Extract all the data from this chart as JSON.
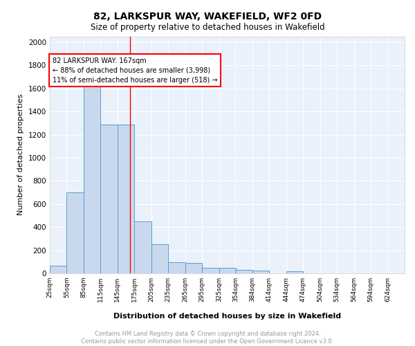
{
  "title": "82, LARKSPUR WAY, WAKEFIELD, WF2 0FD",
  "subtitle": "Size of property relative to detached houses in Wakefield",
  "xlabel": "Distribution of detached houses by size in Wakefield",
  "ylabel": "Number of detached properties",
  "bar_color": "#c9d9ed",
  "bar_edge_color": "#5b9bd5",
  "background_color": "#eaf1fb",
  "grid_color": "#ffffff",
  "red_line_x": 167,
  "annotation_text": "82 LARKSPUR WAY: 167sqm\n← 88% of detached houses are smaller (3,998)\n11% of semi-detached houses are larger (518) →",
  "annotation_box_color": "white",
  "annotation_box_edge": "red",
  "footer_text": "Contains HM Land Registry data © Crown copyright and database right 2024.\nContains public sector information licensed under the Open Government Licence v3.0.",
  "bins_left_edges": [
    25,
    55,
    85,
    115,
    145,
    175,
    205,
    235,
    265,
    295,
    325,
    354,
    384,
    414,
    444,
    474,
    504,
    534,
    564,
    594,
    624
  ],
  "bin_width": 30,
  "counts": [
    68,
    700,
    1630,
    1285,
    1285,
    447,
    250,
    95,
    90,
    50,
    50,
    28,
    25,
    0,
    20,
    0,
    0,
    0,
    0,
    0,
    0
  ],
  "tick_labels": [
    "25sqm",
    "55sqm",
    "85sqm",
    "115sqm",
    "145sqm",
    "175sqm",
    "205sqm",
    "235sqm",
    "265sqm",
    "295sqm",
    "325sqm",
    "354sqm",
    "384sqm",
    "414sqm",
    "444sqm",
    "474sqm",
    "504sqm",
    "534sqm",
    "564sqm",
    "594sqm",
    "624sqm"
  ],
  "ylim": [
    0,
    2050
  ],
  "yticks": [
    0,
    200,
    400,
    600,
    800,
    1000,
    1200,
    1400,
    1600,
    1800,
    2000
  ]
}
